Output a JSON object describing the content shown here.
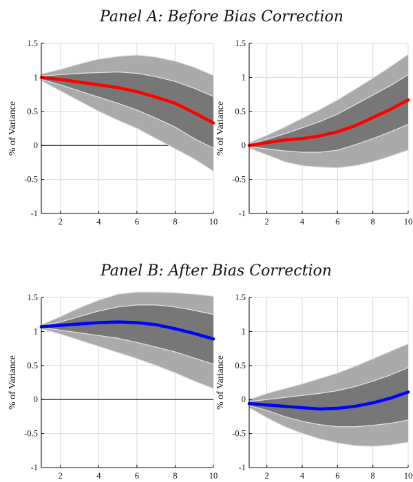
{
  "panels": [
    {
      "title": "Panel A: Before Bias Correction"
    },
    {
      "title": "Panel B: After Bias Correction"
    }
  ],
  "colors": {
    "outer_band": "#aaaaaa",
    "inner_band": "#777777",
    "band_edge": "#e6e6e6",
    "grid": "#d9d9d9",
    "zero_line": "#000000",
    "panel_a_line": "#ff0000",
    "panel_b_line": "#0000ff"
  },
  "chart_data": [
    {
      "type": "area",
      "panel": "Panel A: Before Bias Correction",
      "ylabel": "% of Variance",
      "xlim": [
        1,
        10
      ],
      "ylim": [
        -1,
        1.5
      ],
      "xticks": [
        2,
        4,
        6,
        8,
        10
      ],
      "yticks": [
        -1,
        -0.5,
        0,
        0.5,
        1,
        1.5
      ],
      "grid": true,
      "zero_line_xrange": [
        1,
        7.8
      ],
      "x": [
        1,
        2,
        3,
        4,
        5,
        6,
        7,
        8,
        9,
        10
      ],
      "series": [
        {
          "role": "median",
          "color": "#ff0000",
          "values": [
            1.0,
            0.97,
            0.93,
            0.89,
            0.85,
            0.79,
            0.71,
            0.62,
            0.48,
            0.33
          ]
        },
        {
          "role": "inner_band_upper",
          "values": [
            1.02,
            1.04,
            1.06,
            1.07,
            1.08,
            1.06,
            1.01,
            0.94,
            0.84,
            0.72
          ]
        },
        {
          "role": "inner_band_lower",
          "values": [
            0.97,
            0.89,
            0.8,
            0.71,
            0.62,
            0.52,
            0.4,
            0.27,
            0.1,
            -0.04
          ]
        },
        {
          "role": "outer_band_upper",
          "values": [
            1.05,
            1.12,
            1.2,
            1.27,
            1.31,
            1.33,
            1.3,
            1.24,
            1.15,
            1.03
          ]
        },
        {
          "role": "outer_band_lower",
          "values": [
            0.95,
            0.8,
            0.65,
            0.5,
            0.37,
            0.25,
            0.1,
            -0.05,
            -0.2,
            -0.38
          ]
        }
      ]
    },
    {
      "type": "area",
      "panel": "Panel A: Before Bias Correction",
      "ylabel": "% of Variance",
      "xlim": [
        1,
        10
      ],
      "ylim": [
        -1,
        1.5
      ],
      "xticks": [
        2,
        4,
        6,
        8,
        10
      ],
      "yticks": [
        -1,
        -0.5,
        0,
        0.5,
        1,
        1.5
      ],
      "grid": true,
      "zero_line_xrange": null,
      "x": [
        1,
        2,
        3,
        4,
        5,
        6,
        7,
        8,
        9,
        10
      ],
      "series": [
        {
          "role": "median",
          "color": "#ff0000",
          "values": [
            0.0,
            0.04,
            0.08,
            0.1,
            0.14,
            0.2,
            0.29,
            0.41,
            0.53,
            0.67
          ]
        },
        {
          "role": "inner_band_upper",
          "values": [
            0.02,
            0.09,
            0.17,
            0.26,
            0.35,
            0.46,
            0.6,
            0.74,
            0.88,
            1.04
          ]
        },
        {
          "role": "inner_band_lower",
          "values": [
            -0.02,
            -0.05,
            -0.08,
            -0.1,
            -0.1,
            -0.07,
            0.01,
            0.1,
            0.2,
            0.31
          ]
        },
        {
          "role": "outer_band_upper",
          "values": [
            0.04,
            0.15,
            0.27,
            0.4,
            0.53,
            0.67,
            0.83,
            0.99,
            1.16,
            1.34
          ]
        },
        {
          "role": "outer_band_lower",
          "values": [
            -0.04,
            -0.14,
            -0.24,
            -0.3,
            -0.32,
            -0.33,
            -0.3,
            -0.24,
            -0.16,
            -0.07
          ]
        }
      ]
    },
    {
      "type": "area",
      "panel": "Panel B: After Bias Correction",
      "ylabel": "% of Variance",
      "xlim": [
        1,
        10
      ],
      "ylim": [
        -1,
        1.5
      ],
      "xticks": [
        2,
        4,
        6,
        8,
        10
      ],
      "yticks": [
        -1,
        -0.5,
        0,
        0.5,
        1,
        1.5
      ],
      "grid": true,
      "zero_line_xrange": [
        1,
        10
      ],
      "x": [
        1,
        2,
        3,
        4,
        5,
        6,
        7,
        8,
        9,
        10
      ],
      "series": [
        {
          "role": "median",
          "color": "#0000ff",
          "values": [
            1.07,
            1.09,
            1.11,
            1.13,
            1.14,
            1.13,
            1.1,
            1.04,
            0.97,
            0.89
          ]
        },
        {
          "role": "inner_band_upper",
          "values": [
            1.08,
            1.14,
            1.22,
            1.3,
            1.36,
            1.39,
            1.39,
            1.36,
            1.31,
            1.25
          ]
        },
        {
          "role": "inner_band_lower",
          "values": [
            1.06,
            1.02,
            0.98,
            0.94,
            0.9,
            0.84,
            0.77,
            0.7,
            0.61,
            0.52
          ]
        },
        {
          "role": "outer_band_upper",
          "values": [
            1.1,
            1.22,
            1.35,
            1.46,
            1.55,
            1.58,
            1.58,
            1.57,
            1.55,
            1.52
          ]
        },
        {
          "role": "outer_band_lower",
          "values": [
            1.04,
            0.96,
            0.87,
            0.78,
            0.69,
            0.6,
            0.5,
            0.39,
            0.27,
            0.16
          ]
        }
      ]
    },
    {
      "type": "area",
      "panel": "Panel B: After Bias Correction",
      "ylabel": "% of Variance",
      "xlim": [
        1,
        10
      ],
      "ylim": [
        -1,
        1.5
      ],
      "xticks": [
        2,
        4,
        6,
        8,
        10
      ],
      "yticks": [
        -1,
        -0.5,
        0,
        0.5,
        1,
        1.5
      ],
      "grid": true,
      "zero_line_xrange": null,
      "x": [
        1,
        2,
        3,
        4,
        5,
        6,
        7,
        8,
        9,
        10
      ],
      "series": [
        {
          "role": "median",
          "color": "#0000ff",
          "values": [
            -0.06,
            -0.08,
            -0.1,
            -0.12,
            -0.14,
            -0.13,
            -0.1,
            -0.05,
            0.02,
            0.11
          ]
        },
        {
          "role": "inner_band_upper",
          "values": [
            -0.03,
            0.0,
            0.03,
            0.06,
            0.09,
            0.13,
            0.19,
            0.27,
            0.36,
            0.47
          ]
        },
        {
          "role": "inner_band_lower",
          "values": [
            -0.09,
            -0.16,
            -0.25,
            -0.32,
            -0.37,
            -0.4,
            -0.4,
            -0.38,
            -0.35,
            -0.3
          ]
        },
        {
          "role": "outer_band_upper",
          "values": [
            0.0,
            0.09,
            0.16,
            0.23,
            0.31,
            0.39,
            0.49,
            0.6,
            0.71,
            0.82
          ]
        },
        {
          "role": "outer_band_lower",
          "values": [
            -0.12,
            -0.27,
            -0.4,
            -0.5,
            -0.58,
            -0.64,
            -0.68,
            -0.69,
            -0.67,
            -0.63
          ]
        }
      ]
    }
  ]
}
